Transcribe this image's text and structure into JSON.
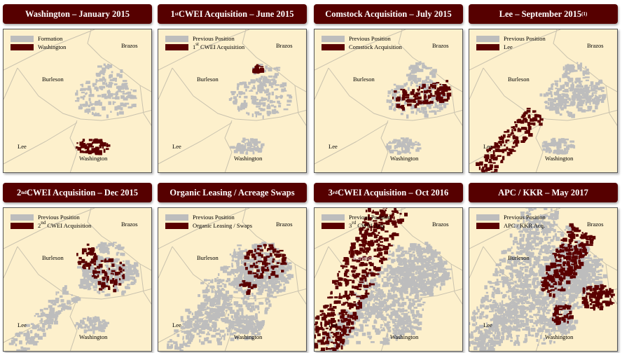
{
  "colors": {
    "header_bg": "#560000",
    "map_bg": "#fdf0cc",
    "formation": "#bdbdbd",
    "acquisition": "#5a0000",
    "county_line": "#c9c2ae"
  },
  "counties": {
    "brazos": "Brazos",
    "burleson": "Burleson",
    "lee": "Lee",
    "washington": "Washington"
  },
  "panels": [
    {
      "title": {
        "pre": "Washington – January 2015",
        "sup": "",
        "post": ""
      },
      "legend": [
        {
          "pre": "Formation",
          "sup": "",
          "post": ""
        },
        {
          "pre": "Washington",
          "sup": "",
          "post": ""
        }
      ]
    },
    {
      "title": {
        "pre": "1",
        "sup": "st",
        "post": " CWEI Acquisition – June 2015"
      },
      "legend": [
        {
          "pre": "Previous Position",
          "sup": "",
          "post": ""
        },
        {
          "pre": "1",
          "sup": "st",
          "post": " CWEI Acquisition"
        }
      ]
    },
    {
      "title": {
        "pre": "Comstock Acquisition – July 2015",
        "sup": "",
        "post": ""
      },
      "legend": [
        {
          "pre": "Previous Position",
          "sup": "",
          "post": ""
        },
        {
          "pre": "Comstock Acquisition",
          "sup": "",
          "post": ""
        }
      ]
    },
    {
      "title": {
        "pre": "Lee – September 2015",
        "sup": "(1)",
        "post": ""
      },
      "legend": [
        {
          "pre": "Previous Position",
          "sup": "",
          "post": ""
        },
        {
          "pre": "Lee",
          "sup": "",
          "post": ""
        }
      ]
    },
    {
      "title": {
        "pre": "2",
        "sup": "nd",
        "post": " CWEI Acquisition – Dec 2015"
      },
      "legend": [
        {
          "pre": "Previous Position",
          "sup": "",
          "post": ""
        },
        {
          "pre": "2",
          "sup": "nd",
          "post": " CWEI Acquisition"
        }
      ]
    },
    {
      "title": {
        "pre": "Organic Leasing / Acreage Swaps",
        "sup": "",
        "post": ""
      },
      "legend": [
        {
          "pre": "Previous Position",
          "sup": "",
          "post": ""
        },
        {
          "pre": "Organic Leasing / Swaps",
          "sup": "",
          "post": ""
        }
      ]
    },
    {
      "title": {
        "pre": "3",
        "sup": "rd",
        "post": " CWEI Acquisition – Oct 2016"
      },
      "legend": [
        {
          "pre": "Previous Position",
          "sup": "",
          "post": ""
        },
        {
          "pre": "3",
          "sup": "rd",
          "post": " CWEI Acq."
        }
      ]
    },
    {
      "title": {
        "pre": "APC / KKR – May 2017",
        "sup": "",
        "post": ""
      },
      "legend": [
        {
          "pre": "Previous Position",
          "sup": "",
          "post": ""
        },
        {
          "pre": "APC / KKR Acq.",
          "sup": "",
          "post": ""
        }
      ]
    }
  ]
}
